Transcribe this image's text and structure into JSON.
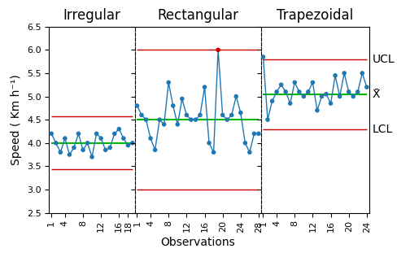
{
  "chart_data": [
    {
      "type": "line",
      "title": "Irregular",
      "ylabel": "Speed ( Km h⁻¹)",
      "marker": "circle",
      "x": [
        1,
        2,
        3,
        4,
        5,
        6,
        7,
        8,
        9,
        10,
        11,
        12,
        13,
        14,
        15,
        16,
        17,
        18,
        19
      ],
      "values": [
        4.2,
        4.0,
        3.8,
        4.1,
        3.75,
        3.9,
        4.2,
        3.85,
        4.0,
        3.7,
        4.2,
        4.1,
        3.85,
        3.9,
        4.2,
        4.3,
        4.1,
        3.95,
        4.0
      ],
      "mean": {
        "value": 4.0,
        "color": "#00bb00"
      },
      "ucl": {
        "value": 4.57,
        "color": "#cc0000"
      },
      "lcl": {
        "value": 3.43,
        "color": "#cc0000"
      },
      "xlim": [
        0.5,
        19.5
      ],
      "xticks": [
        1,
        4,
        8,
        12,
        16,
        18
      ],
      "ylim": [
        2.5,
        6.5
      ],
      "yticks": [
        2.5,
        3.0,
        3.5,
        4.0,
        4.5,
        5.0,
        5.5,
        6.0,
        6.5
      ]
    },
    {
      "type": "line",
      "title": "Rectangular",
      "xlabel": "Observations",
      "marker": "circle",
      "tick_labels": "x",
      "x": [
        1,
        2,
        3,
        4,
        5,
        6,
        7,
        8,
        9,
        10,
        11,
        12,
        13,
        14,
        15,
        16,
        17,
        18,
        19,
        20,
        21,
        22,
        23,
        24,
        25,
        26,
        27,
        28
      ],
      "values": [
        4.8,
        4.6,
        4.5,
        4.1,
        3.85,
        4.5,
        4.4,
        5.3,
        4.8,
        4.4,
        4.95,
        4.6,
        4.5,
        4.5,
        4.6,
        5.2,
        4.0,
        3.8,
        6.0,
        4.6,
        4.5,
        4.6,
        5.0,
        4.65,
        4.0,
        3.8,
        4.2,
        4.2
      ],
      "colors": [
        "#1f77b4",
        "#1f77b4",
        "#1f77b4",
        "#1f77b4",
        "#1f77b4",
        "#1f77b4",
        "#1f77b4",
        "#1f77b4",
        "#1f77b4",
        "#1f77b4",
        "#1f77b4",
        "#1f77b4",
        "#1f77b4",
        "#1f77b4",
        "#1f77b4",
        "#1f77b4",
        "#1f77b4",
        "#1f77b4",
        "#cc0000",
        "#1f77b4",
        "#1f77b4",
        "#1f77b4",
        "#1f77b4",
        "#1f77b4",
        "#1f77b4",
        "#1f77b4",
        "#1f77b4",
        "#1f77b4"
      ],
      "mean": {
        "value": 4.5,
        "color": "#00bb00"
      },
      "ucl": {
        "value": 6.0,
        "color": "#cc0000"
      },
      "lcl": {
        "value": 3.0,
        "color": "#cc0000"
      },
      "xlim": [
        0.5,
        28.5
      ],
      "xticks": [
        1,
        4,
        8,
        12,
        16,
        20,
        24,
        28
      ],
      "ylim": [
        2.5,
        6.5
      ],
      "yticks": [
        2.5,
        3.0,
        3.5,
        4.0,
        4.5,
        5.0,
        5.5,
        6.0,
        6.5
      ]
    },
    {
      "type": "line",
      "title": "Trapezoidal",
      "marker": "circle",
      "tick_labels": "x",
      "x": [
        1,
        2,
        3,
        4,
        5,
        6,
        7,
        8,
        9,
        10,
        11,
        12,
        13,
        14,
        15,
        16,
        17,
        18,
        19,
        20,
        21,
        22,
        23,
        24
      ],
      "values": [
        5.85,
        4.5,
        4.9,
        5.1,
        5.25,
        5.1,
        4.85,
        5.3,
        5.1,
        5.0,
        5.1,
        5.3,
        4.7,
        5.0,
        5.05,
        4.85,
        5.45,
        5.0,
        5.5,
        5.1,
        5.0,
        5.1,
        5.5,
        5.2
      ],
      "mean": {
        "value": 5.05,
        "color": "#00bb00"
      },
      "ucl": {
        "value": 5.8,
        "color": "#cc0000"
      },
      "lcl": {
        "value": 4.3,
        "color": "#cc0000"
      },
      "annotations": [
        {
          "text": "UCL",
          "y": 5.8
        },
        {
          "text": "X̄",
          "y": 5.05
        },
        {
          "text": "LCL",
          "y": 4.3
        }
      ],
      "xlim": [
        0.5,
        24.5
      ],
      "xticks": [
        1,
        4,
        8,
        12,
        16,
        20,
        24
      ],
      "ylim": [
        2.5,
        6.5
      ],
      "yticks": [
        2.5,
        3.0,
        3.5,
        4.0,
        4.5,
        5.0,
        5.5,
        6.0,
        6.5
      ]
    }
  ]
}
